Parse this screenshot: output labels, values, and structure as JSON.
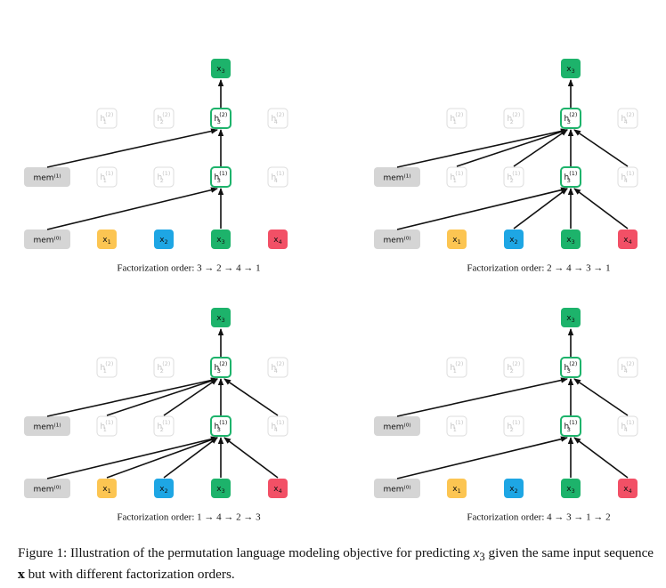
{
  "colors": {
    "target": "#1db36b",
    "x1": "#fcc552",
    "x2": "#1ea6e4",
    "x3": "#1db36b",
    "x4": "#f25066",
    "mem": "#d5d5d5",
    "faded_border": "#dcdcdc",
    "faded_text": "#c4c4c4",
    "active_border": "#1db36b",
    "arrow": "#111111"
  },
  "icons": [
    "right-arrow-icon"
  ],
  "panels": [
    {
      "id": "a",
      "mem_top": "mem⁽¹⁾",
      "mem_bottom": "mem⁽⁰⁾",
      "layer2_inputs": [
        "mem_top",
        "h3_1"
      ],
      "layer1_inputs": [
        "mem_bottom",
        "x3"
      ],
      "order_label": "Factorization order: 3 → 2 → 4 → 1"
    },
    {
      "id": "b",
      "mem_top": "mem⁽¹⁾",
      "mem_bottom": "mem⁽⁰⁾",
      "layer2_inputs": [
        "mem_top",
        "h1_1",
        "h2_1",
        "h3_1",
        "h4_1"
      ],
      "layer1_inputs": [
        "mem_bottom",
        "x2",
        "x3",
        "x4"
      ],
      "order_label": "Factorization order: 2 → 4 → 3 → 1"
    },
    {
      "id": "c",
      "mem_top": "mem⁽¹⁾",
      "mem_bottom": "mem⁽⁰⁾",
      "layer2_inputs": [
        "mem_top",
        "h1_1",
        "h2_1",
        "h3_1",
        "h4_1"
      ],
      "layer1_inputs": [
        "mem_bottom",
        "x1",
        "x2",
        "x3",
        "x4"
      ],
      "order_label": "Factorization order: 1 → 4 → 2 → 3"
    },
    {
      "id": "d",
      "mem_top": "mem⁽⁰⁾",
      "mem_bottom": "mem⁽⁰⁾",
      "layer2_inputs": [
        "mem_top",
        "h3_1",
        "h4_1"
      ],
      "layer1_inputs": [
        "mem_bottom",
        "x3",
        "x4"
      ],
      "order_label": "Factorization order: 4 → 3 → 1 → 2"
    }
  ],
  "caption": {
    "prefix": "Figure 1: Illustration of the permutation language modeling objective for predicting ",
    "math_var": "x",
    "math_sub": "3",
    "middle": " given the same input sequence ",
    "bold_var": "x",
    "suffix": " but with different factorization orders."
  }
}
